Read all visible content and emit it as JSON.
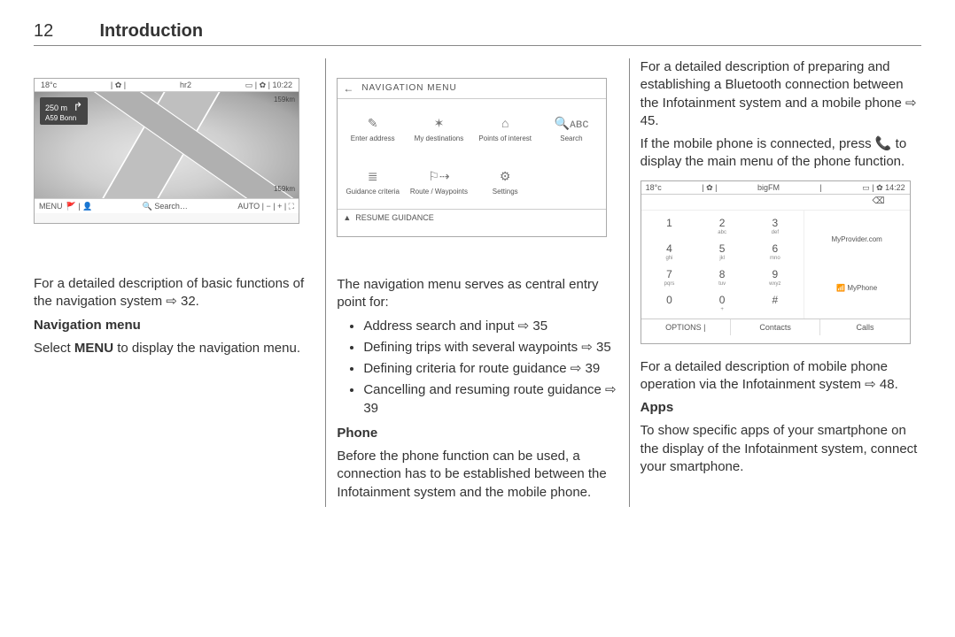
{
  "header": {
    "pageNumber": "12",
    "chapter": "Introduction"
  },
  "xref_glyph": "⇨",
  "col1": {
    "navShot": {
      "topLeftTemp": "18°c",
      "topCenter": "hr2",
      "topRightIcons": "▭ | ✿ | 10:22",
      "direction": {
        "distance": "250 m",
        "road": "A59 Bonn",
        "arrowGlyph": "↱"
      },
      "kmTop": "159km",
      "kmBottom": "159km",
      "bottomMenu": "MENU",
      "bottomIcons": "🚩 | 👤",
      "bottomSearch": "🔍 Search…",
      "bottomRight": "AUTO | − | + | ⛶"
    },
    "para1_pre": "For a detailed description of basic functions of the navigation system ",
    "para1_ref": " 32.",
    "subhead1": "Navigation menu",
    "para2_pre": "Select ",
    "para2_bold": "MENU",
    "para2_post": " to display the navigation menu."
  },
  "col2": {
    "menuShot": {
      "backGlyph": "←",
      "title": "NAVIGATION MENU",
      "items": [
        {
          "icon": "✎",
          "label": "Enter address"
        },
        {
          "icon": "✶",
          "label": "My destinations"
        },
        {
          "icon": "⌂",
          "label": "Points of interest"
        },
        {
          "icon": "🔍ᴀʙᴄ",
          "label": "Search"
        },
        {
          "icon": "≣",
          "label": "Guidance criteria"
        },
        {
          "icon": "⚐⇢",
          "label": "Route / Waypoints"
        },
        {
          "icon": "⚙",
          "label": "Settings"
        }
      ],
      "footerIcon": "▲",
      "footer": "RESUME GUIDANCE"
    },
    "intro": "The navigation menu serves as central entry point for:",
    "bullets": [
      {
        "text": "Address search and input ",
        "ref": " 35"
      },
      {
        "text": "Defining trips with several waypoints ",
        "ref": " 35"
      },
      {
        "text": "Defining criteria for route guidance ",
        "ref": " 39"
      },
      {
        "text": "Cancelling and resuming route guidance ",
        "ref": " 39"
      }
    ],
    "phoneHead": "Phone",
    "phonePara": "Before the phone function can be used, a connection has to be established between the Infotainment system and the mobile phone."
  },
  "col3": {
    "para1_pre": "For a detailed description of preparing and establishing a Bluetooth connection between the Infotainment system and a mobile phone ",
    "para1_ref": " 45.",
    "para2_pre": "If the mobile phone is connected, press ",
    "phoneGlyph": "📞",
    "para2_post": " to display the main menu of the phone function.",
    "phoneShot": {
      "topLeft": "18°c",
      "topCenter": "bigFM",
      "topRight": "▭ | ✿ 14:22",
      "backspace": "⌫",
      "keys": [
        {
          "d": "1",
          "s": ""
        },
        {
          "d": "2",
          "s": "abc"
        },
        {
          "d": "3",
          "s": "def"
        },
        {
          "d": "4",
          "s": "ghi"
        },
        {
          "d": "5",
          "s": "jkl"
        },
        {
          "d": "6",
          "s": "mno"
        },
        {
          "d": "7",
          "s": "pqrs"
        },
        {
          "d": "8",
          "s": "tuv"
        },
        {
          "d": "9",
          "s": "wxyz"
        },
        {
          "d": "0",
          "s": ""
        },
        {
          "d": "0",
          "s": "+"
        },
        {
          "d": "#",
          "s": ""
        }
      ],
      "sideProvider": "MyProvider.com",
      "sidePhoneIcon": "📶",
      "sidePhone": "MyPhone",
      "bottomOptions": "OPTIONS",
      "bottomContacts": "Contacts",
      "bottomCalls": "Calls"
    },
    "para3_pre": "For a detailed description of mobile phone operation via the Infotainment system ",
    "para3_ref": " 48.",
    "appsHead": "Apps",
    "appsPara": "To show specific apps of your smartphone on the display of the Infotainment system, connect your smartphone."
  }
}
